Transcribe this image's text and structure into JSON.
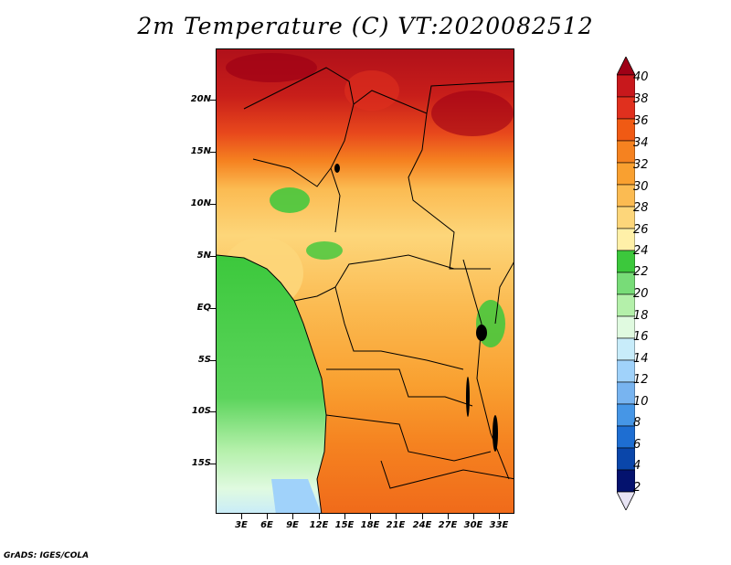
{
  "title": "2m Temperature (C) VT:2020082512",
  "credit": "GrADS: IGES/COLA",
  "chart_data": {
    "type": "heatmap",
    "title": "2m Temperature (C) VT:2020082512",
    "lat_ticks": [
      "20N",
      "15N",
      "10N",
      "5N",
      "EQ",
      "5S",
      "10S",
      "15S"
    ],
    "lon_ticks": [
      "3E",
      "6E",
      "9E",
      "12E",
      "15E",
      "18E",
      "21E",
      "24E",
      "27E",
      "30E",
      "33E"
    ],
    "colorbar": {
      "labels": [
        "40",
        "38",
        "36",
        "34",
        "32",
        "30",
        "28",
        "26",
        "24",
        "22",
        "20",
        "18",
        "16",
        "14",
        "12",
        "10",
        "8",
        "6",
        "4",
        "2"
      ],
      "colors": [
        "#9e0016",
        "#c8181c",
        "#e0301e",
        "#f05a14",
        "#f58220",
        "#f9a030",
        "#fbbb52",
        "#fdd67a",
        "#fff0a8",
        "#3cc83c",
        "#78dc78",
        "#b4f0aa",
        "#e0fae0",
        "#c8ecfa",
        "#a0d2fa",
        "#78b4f0",
        "#4696e6",
        "#1e6ed2",
        "#0a46aa",
        "#04126e"
      ]
    }
  }
}
